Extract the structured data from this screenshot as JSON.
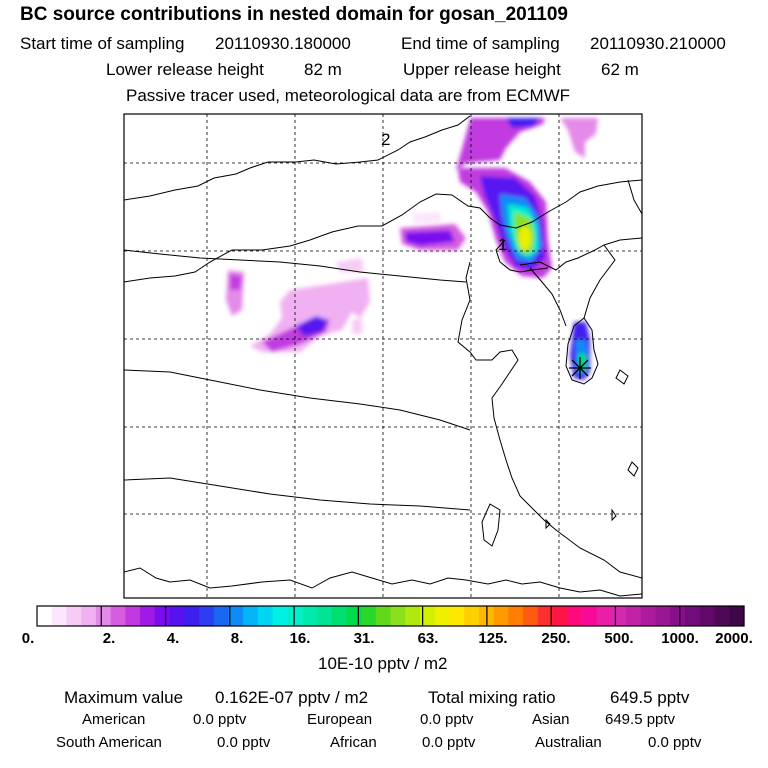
{
  "header": {
    "title": "BC  source contributions in nested domain for gosan_201109",
    "start_label": "Start time of sampling",
    "start_value": "20110930.180000",
    "end_label": "End time of sampling",
    "end_value": "20110930.210000",
    "lower_label": "Lower release height",
    "lower_value": "82 m",
    "upper_label": "Upper release height",
    "upper_value": "62 m",
    "info": "Passive tracer used, meteorological data are from ECMWF"
  },
  "map": {
    "labels": [
      "1",
      "2"
    ],
    "receptor_symbol": "star"
  },
  "colorbar": {
    "ticks": [
      "0.",
      "2.",
      "4.",
      "8.",
      "16.",
      "31.",
      "63.",
      "125.",
      "250.",
      "500.",
      "1000.",
      "2000."
    ],
    "colors": [
      "#ffffff",
      "#fbe6fb",
      "#f6ccf6",
      "#f0b0f2",
      "#e48ae8",
      "#d65de0",
      "#c13ae0",
      "#a019e6",
      "#7a0ded",
      "#5812f0",
      "#3f1ef0",
      "#2d3df2",
      "#1a66f0",
      "#0e8cf5",
      "#05b4f7",
      "#00d6f2",
      "#00f0e4",
      "#00f0cc",
      "#00eab0",
      "#00e493",
      "#00e071",
      "#00da4d",
      "#28d82a",
      "#60d81c",
      "#8ae01a",
      "#b0e80f",
      "#d3f000",
      "#eef000",
      "#ffe800",
      "#ffd000",
      "#ffb700",
      "#ff9b00",
      "#ff7d00",
      "#ff5a10",
      "#ff3030",
      "#ff1446",
      "#ff0a78",
      "#f80a98",
      "#e91fa8",
      "#d42aae",
      "#c122a6",
      "#ad1a9c",
      "#9a1592",
      "#86108a",
      "#720c7a",
      "#620a6a",
      "#4e0856",
      "#3e0648"
    ],
    "unit": "10E-10 pptv / m2"
  },
  "summary": {
    "max_label": "Maximum value",
    "max_value": "0.162E-07 pptv / m2",
    "total_label": "Total mixing ratio",
    "total_value": "649.5 pptv",
    "regions": [
      {
        "name": "American",
        "value": "0.0 pptv"
      },
      {
        "name": "European",
        "value": "0.0 pptv"
      },
      {
        "name": "Asian",
        "value": "649.5 pptv"
      },
      {
        "name": "South American",
        "value": "0.0 pptv"
      },
      {
        "name": "African",
        "value": "0.0 pptv"
      },
      {
        "name": "Australian",
        "value": "0.0 pptv"
      }
    ]
  }
}
